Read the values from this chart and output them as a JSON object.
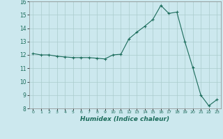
{
  "x": [
    0,
    1,
    2,
    3,
    4,
    5,
    6,
    7,
    8,
    9,
    10,
    11,
    12,
    13,
    14,
    15,
    16,
    17,
    18,
    19,
    20,
    21,
    22,
    23
  ],
  "y": [
    12.1,
    12.0,
    12.0,
    11.9,
    11.85,
    11.8,
    11.8,
    11.8,
    11.75,
    11.7,
    12.0,
    12.05,
    13.2,
    13.7,
    14.15,
    14.65,
    15.7,
    15.1,
    15.2,
    13.0,
    11.05,
    9.0,
    8.2,
    8.65
  ],
  "xlabel": "Humidex (Indice chaleur)",
  "ylim": [
    8,
    16
  ],
  "xlim": [
    -0.5,
    23.5
  ],
  "yticks": [
    8,
    9,
    10,
    11,
    12,
    13,
    14,
    15,
    16
  ],
  "xticks": [
    0,
    1,
    2,
    3,
    4,
    5,
    6,
    7,
    8,
    9,
    10,
    11,
    12,
    13,
    14,
    15,
    16,
    17,
    18,
    19,
    20,
    21,
    22,
    23
  ],
  "line_color": "#1a6b5a",
  "marker": "+",
  "bg_color": "#cce8ee",
  "grid_color": "#aacccc",
  "xlabel_color": "#1a6b5a"
}
